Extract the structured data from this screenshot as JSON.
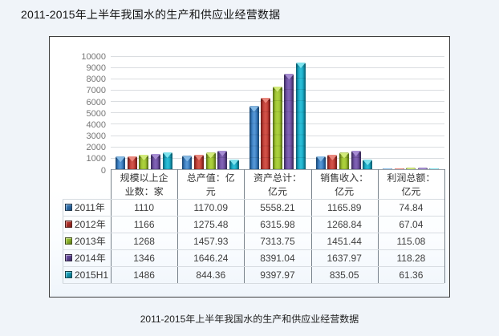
{
  "page": {
    "title": "2011-2015年上半年我国水的生产和供应业经营数据",
    "caption": "2011-2015年上半年我国水的生产和供应业经营数据",
    "background": "#f0f4f9"
  },
  "chart_data": {
    "type": "bar",
    "title": "2011-2015年上半年我国水的生产和供应业经营数据",
    "categories": [
      "规模以上企业数：家",
      "总产值：亿元",
      "资产总计：亿元",
      "销售收入：亿元",
      "利润总额：亿元"
    ],
    "series": [
      {
        "name": "2011年",
        "values": [
          1110,
          1170.09,
          5558.21,
          1165.89,
          74.84
        ],
        "color": "#3b7ec2",
        "edge": "#1d4e7e",
        "light": "#5596d4",
        "glow": "#8cc0ea",
        "key": "#2e6ba6"
      },
      {
        "name": "2012年",
        "values": [
          1166,
          1275.48,
          6315.98,
          1268.84,
          67.04
        ],
        "color": "#c24038",
        "edge": "#7c1f1a",
        "light": "#d05248",
        "glow": "#ef8d82",
        "key": "#a62d26"
      },
      {
        "name": "2013年",
        "values": [
          1268,
          1457.93,
          7313.75,
          1451.44,
          115.08
        ],
        "color": "#9fc233",
        "edge": "#5e7917",
        "light": "#abd03c",
        "glow": "#d7ef7f",
        "key": "#8cb32c"
      },
      {
        "name": "2014年",
        "values": [
          1346,
          1646.24,
          8391.04,
          1637.97,
          118.28
        ],
        "color": "#6f51a3",
        "edge": "#3e2d61",
        "light": "#7f62b3",
        "glow": "#ab91d8",
        "key": "#5e4394"
      },
      {
        "name": "2015H1",
        "values": [
          1486,
          844.36,
          9397.97,
          835.05,
          61.36
        ],
        "color": "#1aa9c4",
        "edge": "#0a6a7e",
        "light": "#2bbdd6",
        "glow": "#85e8f2",
        "key": "#1795ad"
      }
    ],
    "xlabel": "",
    "ylabel": "",
    "ylim": [
      0,
      10000
    ],
    "ytick_step": 1000,
    "grid": true,
    "legend_position": "table-rows"
  }
}
